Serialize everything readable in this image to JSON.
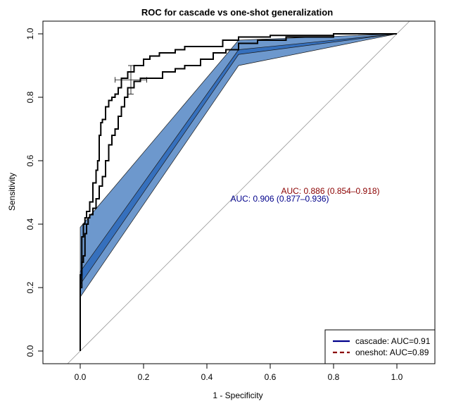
{
  "chart_data": {
    "type": "line",
    "title": "ROC for cascade vs one-shot generalization",
    "xlabel": "1 - Specificity",
    "ylabel": "Sensitivity",
    "xlim": [
      -0.1,
      1.1
    ],
    "ylim": [
      -0.05,
      1.05
    ],
    "x_ticks": [
      "0.0",
      "0.2",
      "0.4",
      "0.6",
      "0.8",
      "1.0"
    ],
    "y_ticks": [
      "0.0",
      "0.2",
      "0.4",
      "0.6",
      "0.8",
      "1.0"
    ],
    "grid": false,
    "legend_position": "bottom-right",
    "colors": {
      "band_outer": "#6d98cd",
      "band_inner": "#3670bd",
      "band_edge": "#1a1a1a",
      "auc_cascade_text": "#00008b",
      "auc_oneshot_text": "#8b0000",
      "legend_cascade": "#00008b",
      "legend_oneshot": "#8b0000",
      "diagonal": "#9a9a9a"
    },
    "bands": {
      "outer_upper": [
        [
          0.0,
          0.39
        ],
        [
          0.5,
          0.98
        ],
        [
          1.0,
          1.0
        ]
      ],
      "outer_lower": [
        [
          0.0,
          0.17
        ],
        [
          0.5,
          0.9
        ],
        [
          1.0,
          1.0
        ]
      ],
      "inner_upper": [
        [
          0.0,
          0.25
        ],
        [
          0.5,
          0.95
        ],
        [
          1.0,
          1.0
        ]
      ],
      "inner_lower": [
        [
          0.0,
          0.21
        ],
        [
          0.5,
          0.935
        ],
        [
          1.0,
          1.0
        ]
      ]
    },
    "series": [
      {
        "name": "cascade",
        "values": [
          [
            0,
            0
          ],
          [
            0,
            0.2
          ],
          [
            0.005,
            0.24
          ],
          [
            0.01,
            0.36
          ],
          [
            0.015,
            0.4
          ],
          [
            0.02,
            0.42
          ],
          [
            0.03,
            0.44
          ],
          [
            0.04,
            0.47
          ],
          [
            0.05,
            0.53
          ],
          [
            0.055,
            0.57
          ],
          [
            0.06,
            0.6
          ],
          [
            0.065,
            0.68
          ],
          [
            0.07,
            0.72
          ],
          [
            0.08,
            0.73
          ],
          [
            0.09,
            0.77
          ],
          [
            0.1,
            0.79
          ],
          [
            0.11,
            0.8
          ],
          [
            0.12,
            0.81
          ],
          [
            0.13,
            0.83
          ],
          [
            0.15,
            0.86
          ],
          [
            0.17,
            0.88
          ],
          [
            0.2,
            0.9
          ],
          [
            0.22,
            0.92
          ],
          [
            0.25,
            0.93
          ],
          [
            0.3,
            0.94
          ],
          [
            0.33,
            0.95
          ],
          [
            0.4,
            0.96
          ],
          [
            0.45,
            0.96
          ],
          [
            0.5,
            0.98
          ],
          [
            0.6,
            0.99
          ],
          [
            0.8,
            0.995
          ],
          [
            1.0,
            1.0
          ]
        ]
      },
      {
        "name": "oneshot",
        "values": [
          [
            0,
            0
          ],
          [
            0,
            0.1
          ],
          [
            0.005,
            0.2
          ],
          [
            0.01,
            0.28
          ],
          [
            0.015,
            0.3
          ],
          [
            0.02,
            0.37
          ],
          [
            0.025,
            0.4
          ],
          [
            0.03,
            0.42
          ],
          [
            0.04,
            0.43
          ],
          [
            0.05,
            0.45
          ],
          [
            0.06,
            0.48
          ],
          [
            0.07,
            0.52
          ],
          [
            0.08,
            0.55
          ],
          [
            0.09,
            0.6
          ],
          [
            0.1,
            0.65
          ],
          [
            0.11,
            0.68
          ],
          [
            0.12,
            0.7
          ],
          [
            0.13,
            0.74
          ],
          [
            0.14,
            0.77
          ],
          [
            0.15,
            0.8
          ],
          [
            0.17,
            0.83
          ],
          [
            0.19,
            0.85
          ],
          [
            0.22,
            0.86
          ],
          [
            0.26,
            0.86
          ],
          [
            0.3,
            0.88
          ],
          [
            0.33,
            0.89
          ],
          [
            0.38,
            0.9
          ],
          [
            0.42,
            0.92
          ],
          [
            0.46,
            0.94
          ],
          [
            0.5,
            0.95
          ],
          [
            0.56,
            0.97
          ],
          [
            0.65,
            0.98
          ],
          [
            0.8,
            0.99
          ],
          [
            1.0,
            1.0
          ]
        ]
      }
    ],
    "error_cross": {
      "center_x": 0.16,
      "center_y": 0.855,
      "x_low": 0.11,
      "x_high": 0.21,
      "y_low": 0.81,
      "y_high": 0.9
    },
    "annotations": [
      {
        "name": "auc-oneshot-annotation",
        "x": 0.79,
        "y": 0.505,
        "text": "AUC: 0.886 (0.854–0.918)",
        "color_key": "auc_oneshot_text"
      },
      {
        "name": "auc-cascade-annotation",
        "x": 0.63,
        "y": 0.48,
        "text": "AUC: 0.906 (0.877–0.936)",
        "color_key": "auc_cascade_text"
      }
    ],
    "legend": [
      {
        "label": "cascade: AUC=0.91",
        "style": "solid",
        "color_key": "legend_cascade"
      },
      {
        "label": "oneshot: AUC=0.89",
        "style": "dashed",
        "color_key": "legend_oneshot"
      }
    ]
  }
}
